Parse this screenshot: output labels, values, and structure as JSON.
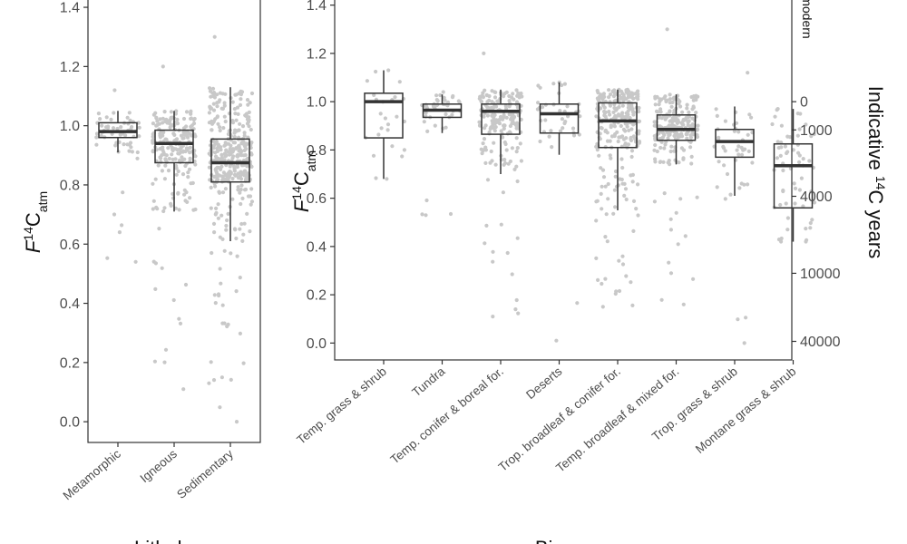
{
  "chart_data": [
    {
      "type": "box",
      "panel": "left",
      "ylabel": {
        "prefix": "F",
        "sup": "14",
        "main": "C",
        "sub": "atm"
      },
      "xlabel": "Lithology",
      "ylim": [
        -0.07,
        1.44
      ],
      "yticks": [
        0.0,
        0.2,
        0.4,
        0.6,
        0.8,
        1.0,
        1.2,
        1.4
      ],
      "ytick_labels": [
        "0.0",
        "0.2",
        "0.4",
        "0.6",
        "0.8",
        "1.0",
        "1.2",
        "1.4"
      ],
      "categories": [
        "Metamorphic",
        "Igneous",
        "Sedimentary"
      ],
      "boxes": [
        {
          "category": "Metamorphic",
          "q1": 0.96,
          "median": 0.98,
          "q3": 1.01,
          "whisker_low": 0.91,
          "whisker_high": 1.05,
          "n_points": 60,
          "point_min": 0.54,
          "point_max": 1.12
        },
        {
          "category": "Igneous",
          "q1": 0.875,
          "median": 0.94,
          "q3": 0.985,
          "whisker_low": 0.71,
          "whisker_high": 1.05,
          "n_points": 220,
          "point_min": 0.11,
          "point_max": 1.2
        },
        {
          "category": "Sedimentary",
          "q1": 0.81,
          "median": 0.875,
          "q3": 0.955,
          "whisker_low": 0.61,
          "whisker_high": 1.13,
          "n_points": 380,
          "point_min": 0.0,
          "point_max": 1.3
        }
      ]
    },
    {
      "type": "box",
      "panel": "right",
      "ylabel": {
        "prefix": "F",
        "sup": "14",
        "main": "C",
        "sub": "atm"
      },
      "xlabel": "Biome",
      "ylim": [
        -0.07,
        1.44
      ],
      "yticks": [
        0.0,
        0.2,
        0.4,
        0.6,
        0.8,
        1.0,
        1.2,
        1.4
      ],
      "ytick_labels": [
        "0.0",
        "0.2",
        "0.4",
        "0.6",
        "0.8",
        "1.0",
        "1.2",
        "1.4"
      ],
      "secondary_axis": {
        "title_prefix": "Indicative ",
        "title_sup": "14",
        "title_main": "C years",
        "ticks": [
          {
            "f14c": 1.0,
            "label": "0"
          },
          {
            "f14c": 0.883,
            "label": "1000"
          },
          {
            "f14c": 0.608,
            "label": "4000"
          },
          {
            "f14c": 0.289,
            "label": "10000"
          },
          {
            "f14c": 0.007,
            "label": "40000"
          }
        ],
        "top_label": "modern",
        "top_label_f14c": 1.35
      },
      "categories": [
        "Temp. grass & shrub",
        "Tundra",
        "Temp. conifer & boreal for.",
        "Deserts",
        "Trop. broadleaf & conifer for.",
        "Temp. broadleaf & mixed for.",
        "Trop. grass & shrub",
        "Montane grass & shrub"
      ],
      "boxes": [
        {
          "category": "Temp. grass & shrub",
          "q1": 0.85,
          "median": 1.0,
          "q3": 1.035,
          "whisker_low": 0.68,
          "whisker_high": 1.13,
          "n_points": 25,
          "point_min": 0.68,
          "point_max": 1.13
        },
        {
          "category": "Tundra",
          "q1": 0.935,
          "median": 0.965,
          "q3": 0.99,
          "whisker_low": 0.87,
          "whisker_high": 1.03,
          "n_points": 45,
          "point_min": 0.53,
          "point_max": 1.04
        },
        {
          "category": "Temp. conifer & boreal for.",
          "q1": 0.865,
          "median": 0.96,
          "q3": 0.99,
          "whisker_low": 0.7,
          "whisker_high": 1.05,
          "n_points": 200,
          "point_min": 0.11,
          "point_max": 1.2
        },
        {
          "category": "Deserts",
          "q1": 0.87,
          "median": 0.95,
          "q3": 0.99,
          "whisker_low": 0.78,
          "whisker_high": 1.08,
          "n_points": 40,
          "point_min": 0.01,
          "point_max": 1.08
        },
        {
          "category": "Trop. broadleaf & conifer for.",
          "q1": 0.81,
          "median": 0.92,
          "q3": 0.995,
          "whisker_low": 0.55,
          "whisker_high": 1.05,
          "n_points": 260,
          "point_min": 0.15,
          "point_max": 1.05
        },
        {
          "category": "Temp. broadleaf & mixed for.",
          "q1": 0.84,
          "median": 0.885,
          "q3": 0.945,
          "whisker_low": 0.74,
          "whisker_high": 1.03,
          "n_points": 230,
          "point_min": 0.16,
          "point_max": 1.3
        },
        {
          "category": "Trop. grass & shrub",
          "q1": 0.77,
          "median": 0.835,
          "q3": 0.885,
          "whisker_low": 0.61,
          "whisker_high": 0.98,
          "n_points": 45,
          "point_min": 0.0,
          "point_max": 1.12
        },
        {
          "category": "Montane grass & shrub",
          "q1": 0.56,
          "median": 0.735,
          "q3": 0.825,
          "whisker_low": 0.42,
          "whisker_high": 0.97,
          "n_points": 60,
          "point_min": 0.42,
          "point_max": 0.97
        }
      ]
    }
  ],
  "colors": {
    "points": "#c8c8c8",
    "box": "#333333",
    "median": "#333333",
    "panel_border": "#333333",
    "tick": "#333333"
  }
}
